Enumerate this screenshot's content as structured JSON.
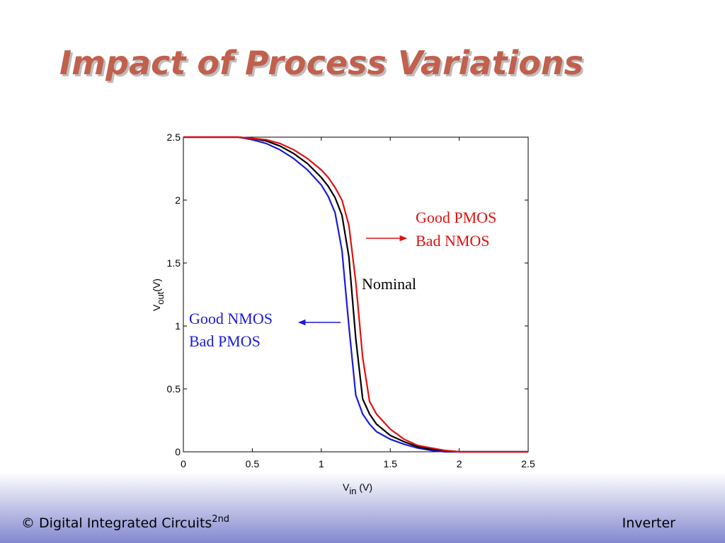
{
  "title": "Impact of Process Variations",
  "chart_data": {
    "type": "line",
    "xlabel": [
      "V",
      "in",
      " (V)"
    ],
    "ylabel": [
      "V",
      "out",
      "(V)"
    ],
    "x": [
      0,
      0.2,
      0.4,
      0.5,
      0.6,
      0.7,
      0.8,
      0.9,
      1.0,
      1.05,
      1.1,
      1.15,
      1.2,
      1.25,
      1.3,
      1.35,
      1.4,
      1.5,
      1.6,
      1.7,
      1.8,
      1.9,
      2.0,
      2.2,
      2.5
    ],
    "series": [
      {
        "color": "#1a1ad8",
        "values": [
          2.5,
          2.5,
          2.5,
          2.48,
          2.45,
          2.4,
          2.33,
          2.24,
          2.12,
          2.03,
          1.9,
          1.6,
          1.0,
          0.45,
          0.3,
          0.22,
          0.16,
          0.1,
          0.06,
          0.03,
          0.01,
          0,
          0,
          0,
          0
        ]
      },
      {
        "color": "#000000",
        "values": [
          2.5,
          2.5,
          2.5,
          2.49,
          2.47,
          2.43,
          2.37,
          2.29,
          2.18,
          2.11,
          2.02,
          1.88,
          1.55,
          0.9,
          0.42,
          0.3,
          0.22,
          0.13,
          0.08,
          0.04,
          0.02,
          0.01,
          0,
          0,
          0
        ]
      },
      {
        "color": "#e01010",
        "values": [
          2.5,
          2.5,
          2.5,
          2.49,
          2.48,
          2.45,
          2.4,
          2.33,
          2.24,
          2.18,
          2.1,
          2.0,
          1.8,
          1.35,
          0.75,
          0.4,
          0.3,
          0.18,
          0.1,
          0.05,
          0.03,
          0.01,
          0,
          0,
          0
        ]
      }
    ],
    "xlim": [
      0,
      2.5
    ],
    "ylim": [
      0,
      2.5
    ],
    "xticks": [
      0,
      0.5,
      1,
      1.5,
      2,
      2.5
    ],
    "yticks": [
      0,
      0.5,
      1,
      1.5,
      2,
      2.5
    ],
    "annotations": [
      "Good PMOS",
      "Bad NMOS",
      "Nominal",
      "Good NMOS",
      "Bad PMOS"
    ]
  },
  "footer": {
    "left": "© Digital Integrated Circuits",
    "left_sup": "2nd",
    "right": "Inverter"
  }
}
